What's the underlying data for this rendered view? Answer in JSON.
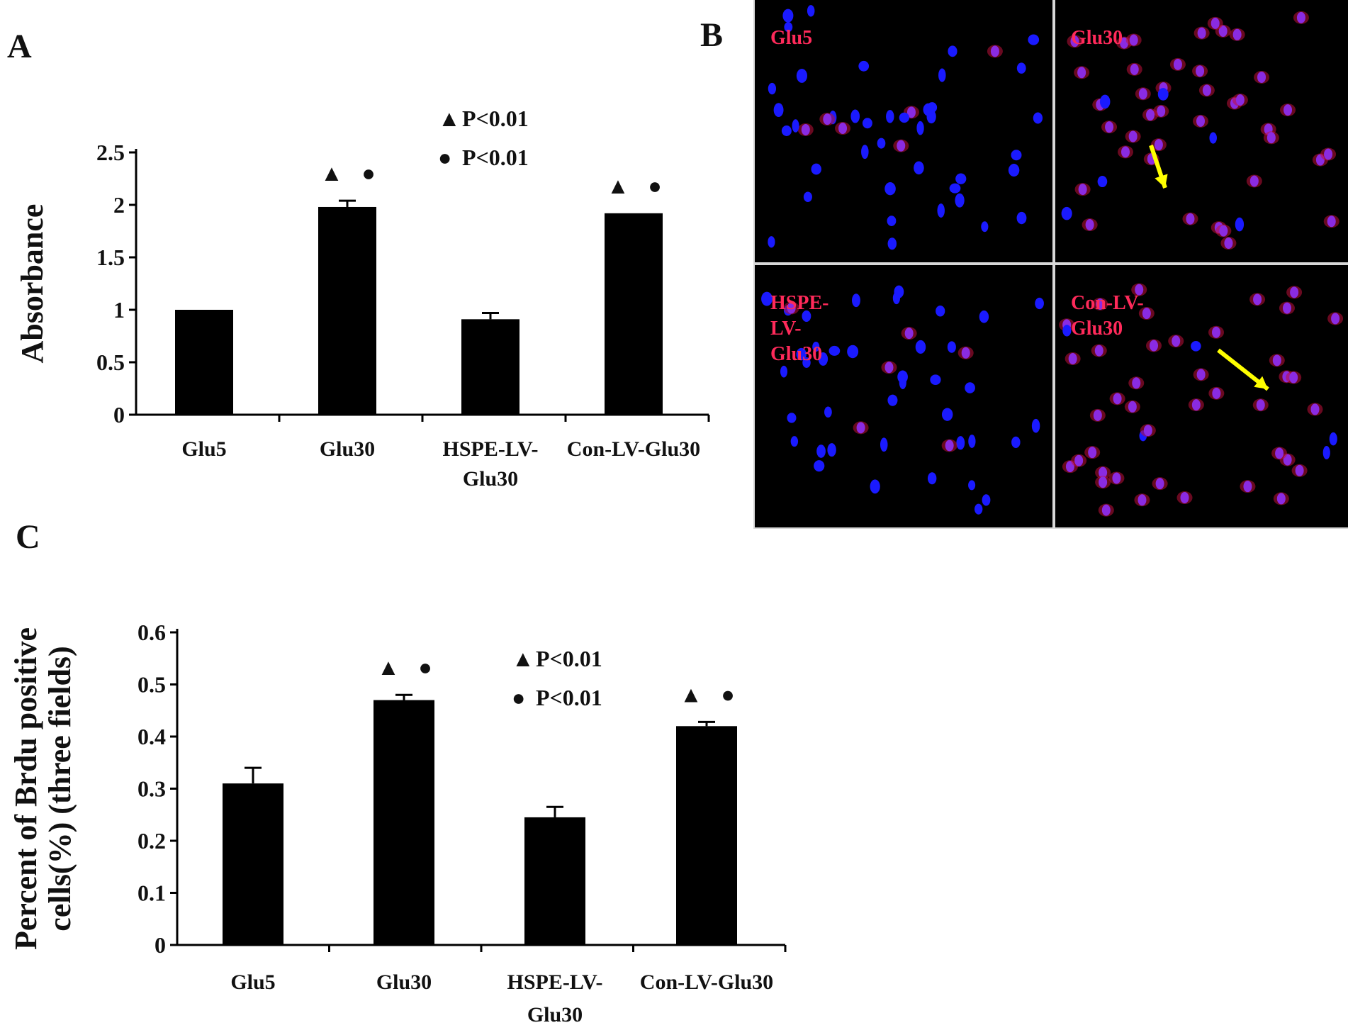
{
  "panel_labels": {
    "a": "A",
    "b": "B",
    "c": "C"
  },
  "colors": {
    "bar": "#000000",
    "axis": "#000000",
    "micro_bg": "#000000",
    "nuclei": "#1a1aff",
    "brdu": "#c0103a",
    "arrow": "#ffff00",
    "micro_label": "#ff2a5a"
  },
  "chart_data": [
    {
      "type": "bar",
      "panel": "A",
      "title": "",
      "xlabel": "",
      "ylabel": "Absorbance",
      "ylim": [
        0,
        2.5
      ],
      "yticks": [
        "0",
        "0.5",
        "1",
        "1.5",
        "2",
        "2.5"
      ],
      "categories": [
        [
          "Glu5"
        ],
        [
          "Glu30"
        ],
        [
          "HSPE-LV-",
          "Glu30"
        ],
        [
          "Con-LV-Glu30"
        ]
      ],
      "series": [
        {
          "values": [
            1.0,
            1.98,
            0.91,
            1.92
          ],
          "errors": [
            0.0,
            0.06,
            0.06,
            0.0
          ]
        }
      ],
      "significance_marks": [
        [],
        [
          "▲",
          "●"
        ],
        [],
        [
          "▲",
          "●"
        ]
      ],
      "legend": [
        {
          "symbol": "▲",
          "text": "P<0.01"
        },
        {
          "symbol": "●",
          "text": "P<0.01"
        }
      ],
      "grid": false
    },
    {
      "type": "bar",
      "panel": "C",
      "title": "",
      "xlabel": "",
      "ylabel": [
        "Percent of Brdu positive",
        "cells(%) (three fields)"
      ],
      "ylim": [
        0,
        0.6
      ],
      "yticks": [
        "0",
        "0.1",
        "0.2",
        "0.3",
        "0.4",
        "0.5",
        "0.6"
      ],
      "categories": [
        [
          "Glu5"
        ],
        [
          "Glu30"
        ],
        [
          "HSPE-LV-",
          "Glu30"
        ],
        [
          "Con-LV-Glu30"
        ]
      ],
      "series": [
        {
          "values": [
            0.31,
            0.47,
            0.245,
            0.42
          ],
          "errors": [
            0.03,
            0.01,
            0.02,
            0.008
          ]
        }
      ],
      "significance_marks": [
        [],
        [
          "▲",
          "●"
        ],
        [],
        [
          "▲",
          "●"
        ]
      ],
      "legend": [
        {
          "symbol": "▲",
          "text": "P<0.01"
        },
        {
          "symbol": "●",
          "text": "P<0.01"
        }
      ],
      "grid": false
    }
  ],
  "micrographs": {
    "panels": [
      {
        "label_lines": [
          "Glu5"
        ],
        "condition": "Glu5",
        "arrow": false,
        "brdu_level": 0.15
      },
      {
        "label_lines": [
          "Glu30"
        ],
        "condition": "Glu30",
        "arrow": true,
        "brdu_level": 0.9
      },
      {
        "label_lines": [
          "HSPE-",
          "LV-",
          "Glu30"
        ],
        "condition": "HSPE-LV-Glu30",
        "arrow": false,
        "brdu_level": 0.1
      },
      {
        "label_lines": [
          "Con-LV-",
          "Glu30"
        ],
        "condition": "Con-LV-Glu30",
        "arrow": true,
        "brdu_level": 0.85
      }
    ]
  }
}
